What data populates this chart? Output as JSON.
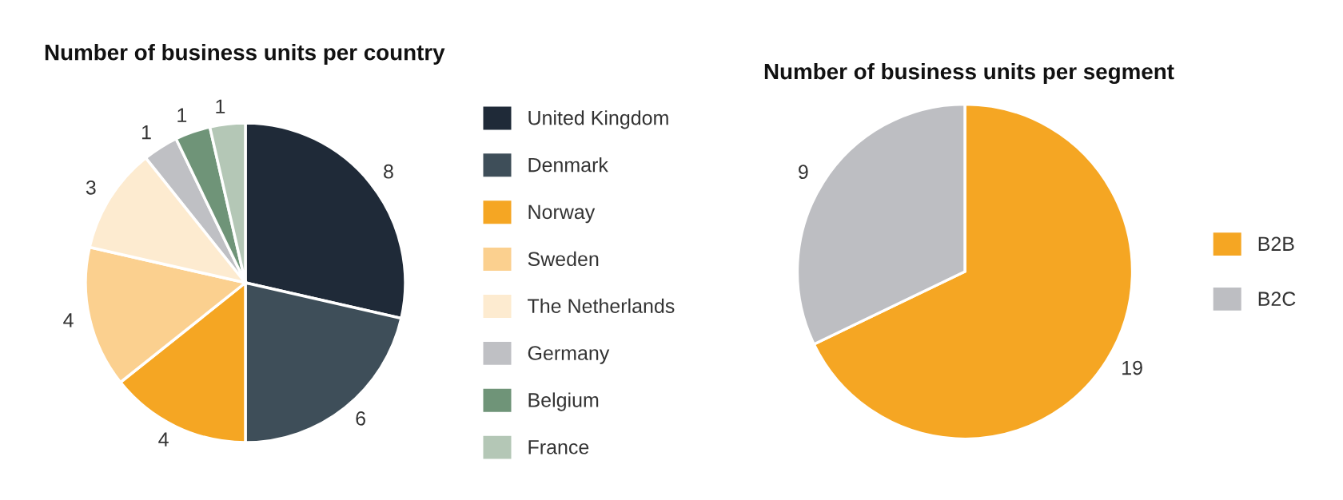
{
  "chart_data": [
    {
      "type": "pie",
      "title": "Number of business units per country",
      "categories": [
        "United Kingdom",
        "Denmark",
        "Norway",
        "Sweden",
        "The Netherlands",
        "Germany",
        "Belgium",
        "France"
      ],
      "values": [
        8,
        6,
        4,
        4,
        3,
        1,
        1,
        1
      ],
      "colors": [
        "#1f2a38",
        "#3e4e59",
        "#f5a623",
        "#fbd08f",
        "#fdebd0",
        "#bfc0c4",
        "#6f9478",
        "#b4c7b6"
      ],
      "data_labels": true,
      "legend": "right"
    },
    {
      "type": "pie",
      "title": "Number of business units per segment",
      "categories": [
        "B2B",
        "B2C"
      ],
      "values": [
        19,
        9
      ],
      "colors": [
        "#f5a623",
        "#bdbec2"
      ],
      "data_labels": true,
      "legend": "right"
    }
  ]
}
